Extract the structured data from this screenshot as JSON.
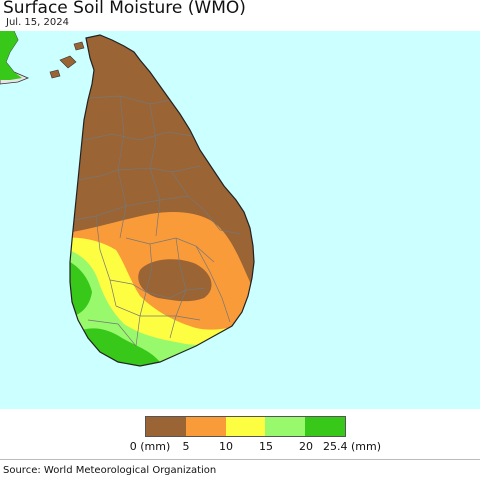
{
  "header": {
    "title": "Surface Soil Moisture (WMO)",
    "date": "Jul. 15, 2024"
  },
  "legend": {
    "colors": [
      "#9a6434",
      "#fa9b3a",
      "#fdfd41",
      "#98f96c",
      "#37c81a"
    ],
    "labels": {
      "t0": "0 (mm)",
      "t1": "5",
      "t2": "10",
      "t3": "15",
      "t4": "20",
      "t5": "25.4 (mm)"
    }
  },
  "map_colors": {
    "sea": "#ccffff",
    "land_outside": "#e6e6e6",
    "dry": "#9a6434",
    "low": "#fa9b3a",
    "mid": "#fdfd41",
    "moist": "#98f96c",
    "wet": "#37c81a",
    "borders": "#777777"
  },
  "footer": {
    "source": "Source: World Meteorological Organization"
  }
}
